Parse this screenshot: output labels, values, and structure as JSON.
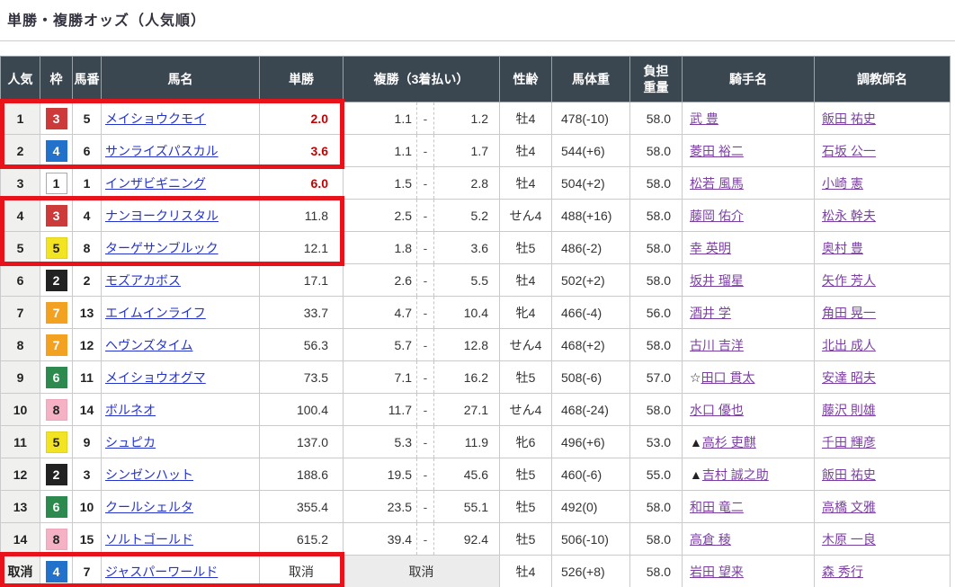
{
  "page_title": "単勝・複勝オッズ（人気順）",
  "colors": {
    "highlight_red": "#e8121a",
    "header_bg": "#3a4650",
    "hot_odds_red": "#c60000",
    "horse_link_blue": "#2433cc",
    "people_link_purple": "#7b3fa2",
    "frame_colors": {
      "1": {
        "bg": "#ffffff",
        "fg": "#222222",
        "border": "#aaaaaa"
      },
      "2": {
        "bg": "#222222",
        "fg": "#ffffff",
        "border": "#222222"
      },
      "3": {
        "bg": "#cc3a3a",
        "fg": "#ffffff",
        "border": "#cc3a3a"
      },
      "4": {
        "bg": "#2272cc",
        "fg": "#ffffff",
        "border": "#2272cc"
      },
      "5": {
        "bg": "#f2e422",
        "fg": "#222222",
        "border": "#e0d41a"
      },
      "6": {
        "bg": "#2d8a4e",
        "fg": "#ffffff",
        "border": "#2d8a4e"
      },
      "7": {
        "bg": "#f3a120",
        "fg": "#ffffff",
        "border": "#f3a120"
      },
      "8": {
        "bg": "#f5b2c5",
        "fg": "#222222",
        "border": "#f0a5bb"
      }
    }
  },
  "table": {
    "headers": {
      "rank": "人気",
      "frame": "枠",
      "horse_no": "馬番",
      "horse_name": "馬名",
      "win": "単勝",
      "place": "複勝（3着払い）",
      "sex_age": "性齢",
      "weight": "馬体重",
      "carry": "負担重量",
      "jockey": "騎手名",
      "trainer": "調教師名"
    },
    "rows": [
      {
        "rank": "1",
        "frame": 3,
        "horse_no": "5",
        "horse_name": "メイショウクモイ",
        "win_odds": "2.0",
        "win_hot": true,
        "place_min": "1.1",
        "place_dash": "-",
        "place_max": "1.2",
        "sex_age": "牡4",
        "weight": "478(-10)",
        "carry": "58.0",
        "jockey_prefix": "",
        "jockey": "武 豊",
        "trainer": "飯田 祐史"
      },
      {
        "rank": "2",
        "frame": 4,
        "horse_no": "6",
        "horse_name": "サンライズパスカル",
        "win_odds": "3.6",
        "win_hot": true,
        "place_min": "1.1",
        "place_dash": "-",
        "place_max": "1.7",
        "sex_age": "牡4",
        "weight": "544(+6)",
        "carry": "58.0",
        "jockey_prefix": "",
        "jockey": "菱田 裕二",
        "trainer": "石坂 公一"
      },
      {
        "rank": "3",
        "frame": 1,
        "horse_no": "1",
        "horse_name": "インザビギニング",
        "win_odds": "6.0",
        "win_hot": true,
        "place_min": "1.5",
        "place_dash": "-",
        "place_max": "2.8",
        "sex_age": "牡4",
        "weight": "504(+2)",
        "carry": "58.0",
        "jockey_prefix": "",
        "jockey": "松若 風馬",
        "trainer": "小崎 憲"
      },
      {
        "rank": "4",
        "frame": 3,
        "horse_no": "4",
        "horse_name": "ナンヨークリスタル",
        "win_odds": "11.8",
        "win_hot": false,
        "place_min": "2.5",
        "place_dash": "-",
        "place_max": "5.2",
        "sex_age": "せん4",
        "weight": "488(+16)",
        "carry": "58.0",
        "jockey_prefix": "",
        "jockey": "藤岡 佑介",
        "trainer": "松永 幹夫"
      },
      {
        "rank": "5",
        "frame": 5,
        "horse_no": "8",
        "horse_name": "ターゲサンブルック",
        "win_odds": "12.1",
        "win_hot": false,
        "place_min": "1.8",
        "place_dash": "-",
        "place_max": "3.6",
        "sex_age": "牡5",
        "weight": "486(-2)",
        "carry": "58.0",
        "jockey_prefix": "",
        "jockey": "幸 英明",
        "trainer": "奥村 豊"
      },
      {
        "rank": "6",
        "frame": 2,
        "horse_no": "2",
        "horse_name": "モズアカボス",
        "win_odds": "17.1",
        "win_hot": false,
        "place_min": "2.6",
        "place_dash": "-",
        "place_max": "5.5",
        "sex_age": "牡4",
        "weight": "502(+2)",
        "carry": "58.0",
        "jockey_prefix": "",
        "jockey": "坂井 瑠星",
        "trainer": "矢作 芳人"
      },
      {
        "rank": "7",
        "frame": 7,
        "horse_no": "13",
        "horse_name": "エイムインライフ",
        "win_odds": "33.7",
        "win_hot": false,
        "place_min": "4.7",
        "place_dash": "-",
        "place_max": "10.4",
        "sex_age": "牝4",
        "weight": "466(-4)",
        "carry": "56.0",
        "jockey_prefix": "",
        "jockey": "酒井 学",
        "trainer": "角田 晃一"
      },
      {
        "rank": "8",
        "frame": 7,
        "horse_no": "12",
        "horse_name": "ヘヴンズタイム",
        "win_odds": "56.3",
        "win_hot": false,
        "place_min": "5.7",
        "place_dash": "-",
        "place_max": "12.8",
        "sex_age": "せん4",
        "weight": "468(+2)",
        "carry": "58.0",
        "jockey_prefix": "",
        "jockey": "古川 吉洋",
        "trainer": "北出 成人"
      },
      {
        "rank": "9",
        "frame": 6,
        "horse_no": "11",
        "horse_name": "メイショウオグマ",
        "win_odds": "73.5",
        "win_hot": false,
        "place_min": "7.1",
        "place_dash": "-",
        "place_max": "16.2",
        "sex_age": "牡5",
        "weight": "508(-6)",
        "carry": "57.0",
        "jockey_prefix": "☆",
        "jockey": "田口 貫太",
        "trainer": "安達 昭夫"
      },
      {
        "rank": "10",
        "frame": 8,
        "horse_no": "14",
        "horse_name": "ボルネオ",
        "win_odds": "100.4",
        "win_hot": false,
        "place_min": "11.7",
        "place_dash": "-",
        "place_max": "27.1",
        "sex_age": "せん4",
        "weight": "468(-24)",
        "carry": "58.0",
        "jockey_prefix": "",
        "jockey": "水口 優也",
        "trainer": "藤沢 則雄"
      },
      {
        "rank": "11",
        "frame": 5,
        "horse_no": "9",
        "horse_name": "シュピカ",
        "win_odds": "137.0",
        "win_hot": false,
        "place_min": "5.3",
        "place_dash": "-",
        "place_max": "11.9",
        "sex_age": "牝6",
        "weight": "496(+6)",
        "carry": "53.0",
        "jockey_prefix": "▲",
        "jockey": "高杉 吏麒",
        "trainer": "千田 輝彦"
      },
      {
        "rank": "12",
        "frame": 2,
        "horse_no": "3",
        "horse_name": "シンゼンハット",
        "win_odds": "188.6",
        "win_hot": false,
        "place_min": "19.5",
        "place_dash": "-",
        "place_max": "45.6",
        "sex_age": "牡5",
        "weight": "460(-6)",
        "carry": "55.0",
        "jockey_prefix": "▲",
        "jockey": "吉村 誠之助",
        "trainer": "飯田 祐史"
      },
      {
        "rank": "13",
        "frame": 6,
        "horse_no": "10",
        "horse_name": "クールシェルタ",
        "win_odds": "355.4",
        "win_hot": false,
        "place_min": "23.5",
        "place_dash": "-",
        "place_max": "55.1",
        "sex_age": "牡5",
        "weight": "492(0)",
        "carry": "58.0",
        "jockey_prefix": "",
        "jockey": "和田 竜二",
        "trainer": "高橋 文雅"
      },
      {
        "rank": "14",
        "frame": 8,
        "horse_no": "15",
        "horse_name": "ソルトゴールド",
        "win_odds": "615.2",
        "win_hot": false,
        "place_min": "39.4",
        "place_dash": "-",
        "place_max": "92.4",
        "sex_age": "牡5",
        "weight": "506(-10)",
        "carry": "58.0",
        "jockey_prefix": "",
        "jockey": "高倉 稜",
        "trainer": "木原 一良"
      },
      {
        "rank": "取消",
        "frame": 4,
        "horse_no": "7",
        "horse_name": "ジャスパーワールド",
        "win_odds": "取消",
        "win_hot": false,
        "cancelled": true,
        "place_cancel": "取消",
        "sex_age": "牡4",
        "weight": "526(+8)",
        "carry": "58.0",
        "jockey_prefix": "",
        "jockey": "岩田 望来",
        "trainer": "森 秀行"
      }
    ]
  },
  "highlights": [
    {
      "from": 0,
      "to": 1
    },
    {
      "from": 3,
      "to": 4
    },
    {
      "from": 14,
      "to": 14
    }
  ]
}
